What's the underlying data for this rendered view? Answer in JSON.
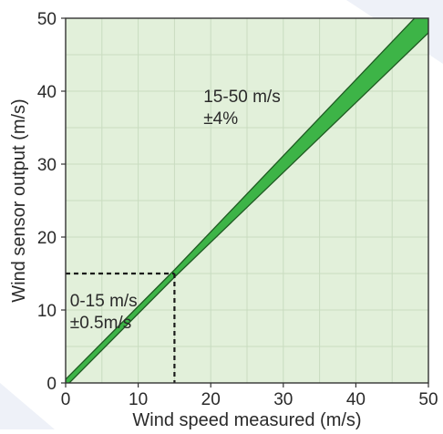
{
  "chart_data": {
    "type": "area",
    "title": "",
    "xlabel": "Wind speed measured (m/s)",
    "ylabel": "Wind sensor output (m/s)",
    "xlim": [
      0,
      50
    ],
    "ylim": [
      0,
      50
    ],
    "x_ticks": [
      0,
      10,
      20,
      30,
      40,
      50
    ],
    "y_ticks": [
      0,
      10,
      20,
      30,
      40,
      50
    ],
    "grid": true,
    "colors": {
      "plot_background": "#e2f0da",
      "band_fill": "#3db447",
      "band_stroke": "#1f5a22",
      "grid": "#c9dcc0",
      "page_background": "#ffffff"
    },
    "series": [
      {
        "name": "",
        "x": [
          0,
          15,
          50
        ],
        "lower": [
          -0.5,
          14.5,
          48
        ],
        "upper": [
          0.5,
          15.5,
          52
        ]
      }
    ],
    "reference_lines": {
      "x": 15,
      "y": 15,
      "style": "dashed"
    },
    "annotations": [
      {
        "lines": [
          "15-50 m/s",
          "±4%"
        ],
        "x": 19,
        "y": 38.5
      },
      {
        "lines": [
          "0-15 m/s",
          "±0.5m/s"
        ],
        "x": 0.6,
        "y": 10.5
      }
    ]
  }
}
